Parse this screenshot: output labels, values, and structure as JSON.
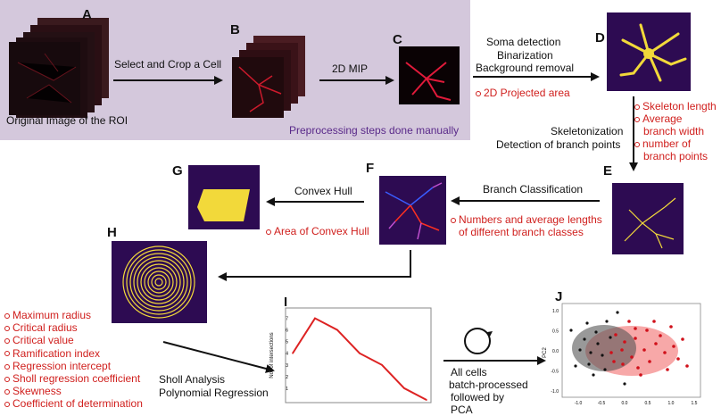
{
  "labels": {
    "A": "A",
    "B": "B",
    "C": "C",
    "D": "D",
    "E": "E",
    "F": "F",
    "G": "G",
    "H": "H",
    "I": "I",
    "J": "J"
  },
  "preprocessing": {
    "original_image": "Original Image of the ROI",
    "select_crop": "Select and Crop a Cell",
    "mip": "2D MIP",
    "note": "Preprocessing steps done manually"
  },
  "steps": {
    "soma": "Soma detection",
    "binarization": "Binarization",
    "background": "Background removal",
    "skeletonization": "Skeletonization",
    "branch_points": "Detection of branch points",
    "branch_classification": "Branch Classification",
    "convex_hull": "Convex Hull",
    "sholl": "Sholl Analysis",
    "polynomial": "Polynomial Regression",
    "batch_1": "All cells",
    "batch_2": "batch-processed",
    "batch_3": "followed by",
    "batch_4": "PCA"
  },
  "features": {
    "projected_area": "2D Projected area",
    "skeleton": [
      "Skeleton length",
      "Average",
      "branch width",
      "number of",
      "branch points"
    ],
    "branch_classes": [
      "Numbers and average lengths",
      "of different branch classes"
    ],
    "convex_area": "Area of Convex Hull",
    "sholl_list": [
      "Maximum radius",
      "Critical radius",
      "Critical value",
      "Ramification index",
      "Regression intercept",
      "Sholl regression coefficient",
      "Skewness",
      "Coefficient of determination"
    ]
  },
  "sholl_plot": {
    "ylabel": "No. of intersections",
    "yticks": [
      "1",
      "2",
      "3",
      "4",
      "5",
      "6",
      "7"
    ]
  },
  "chart_data": {
    "type": "line",
    "x": [
      0,
      1,
      2,
      3,
      4,
      5,
      6
    ],
    "values": [
      4,
      7,
      6,
      4,
      3,
      1,
      0
    ],
    "ylabel": "No. of intersections",
    "ylim": [
      0,
      7.5
    ],
    "color": "#dd2222"
  },
  "pca": {
    "ylabel": "PC2",
    "xticks": [
      "-1.0",
      "-0.5",
      "0.0",
      "0.5",
      "1.0",
      "1.5"
    ],
    "yticks": [
      "1.0",
      "0.5",
      "0.0",
      "-0.5",
      "-1.0"
    ]
  },
  "colors": {
    "accent_red": "#d0201e",
    "panel_bg": "#2b0a4d",
    "preproc_bg": "#d4c8dc",
    "skeleton_yellow": "#f2d93a"
  }
}
